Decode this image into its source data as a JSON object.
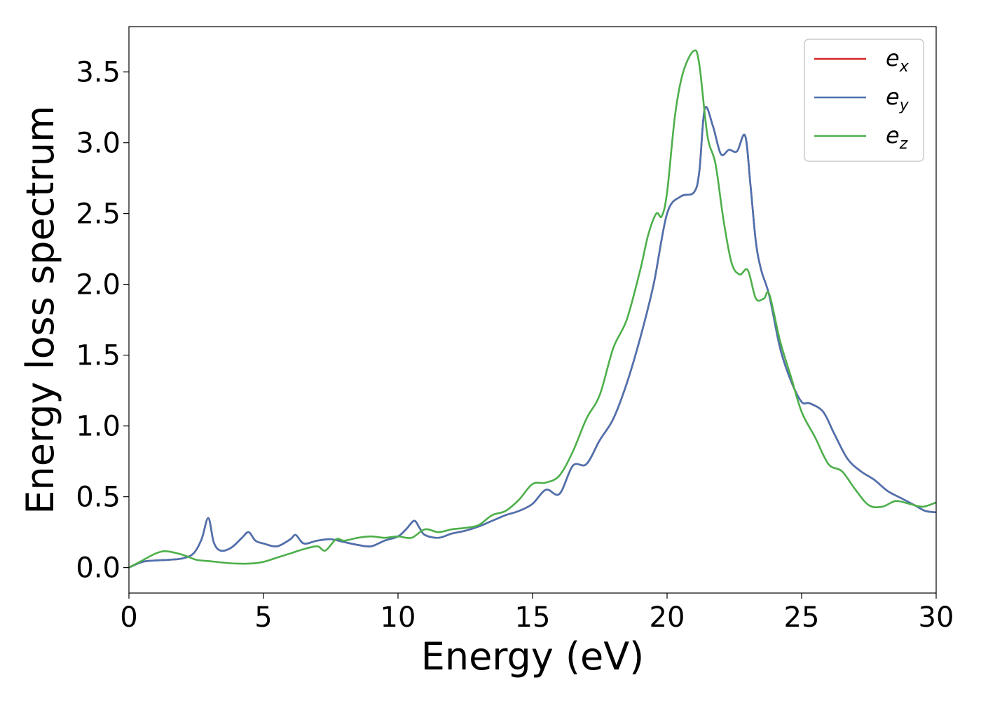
{
  "chart_data": {
    "type": "line",
    "xlabel": "Energy (eV)",
    "ylabel": "Energy loss spectrum",
    "xlim": [
      0,
      30
    ],
    "ylim": [
      -0.18,
      3.82
    ],
    "x_ticks": [
      "0",
      "5",
      "10",
      "15",
      "20",
      "25",
      "30"
    ],
    "y_ticks": [
      "0.0",
      "0.5",
      "1.0",
      "1.5",
      "2.0",
      "2.5",
      "3.0",
      "3.5"
    ],
    "grid": false,
    "legend_position": "top-right",
    "series": [
      {
        "name": "e_x",
        "label_main": "e",
        "label_sub": "x",
        "color": "#d62728",
        "x": [
          0,
          0.5,
          1.0,
          1.5,
          2.0,
          2.4,
          2.7,
          2.95,
          3.15,
          3.4,
          3.8,
          4.2,
          4.45,
          4.7,
          5.0,
          5.5,
          6.0,
          6.2,
          6.5,
          7.0,
          7.5,
          8.0,
          8.5,
          9.0,
          9.5,
          10.0,
          10.3,
          10.6,
          10.8,
          11.0,
          11.5,
          12.0,
          12.5,
          13.0,
          13.5,
          14.0,
          14.5,
          15.0,
          15.5,
          16.0,
          16.5,
          17.0,
          17.5,
          18.0,
          18.5,
          19.0,
          19.5,
          20.0,
          20.5,
          21.0,
          21.2,
          21.4,
          21.7,
          22.0,
          22.3,
          22.6,
          22.9,
          23.1,
          23.3,
          23.5,
          23.8,
          24.2,
          24.6,
          25.0,
          25.3,
          25.8,
          26.2,
          26.7,
          27.2,
          27.7,
          28.2,
          28.7,
          29.2,
          29.6,
          30.0
        ],
        "values": [
          0.0,
          0.04,
          0.05,
          0.055,
          0.065,
          0.1,
          0.2,
          0.35,
          0.18,
          0.12,
          0.14,
          0.21,
          0.25,
          0.19,
          0.17,
          0.15,
          0.2,
          0.23,
          0.17,
          0.19,
          0.2,
          0.18,
          0.16,
          0.15,
          0.19,
          0.22,
          0.27,
          0.33,
          0.28,
          0.23,
          0.21,
          0.24,
          0.26,
          0.29,
          0.33,
          0.37,
          0.4,
          0.45,
          0.55,
          0.52,
          0.72,
          0.73,
          0.9,
          1.05,
          1.3,
          1.62,
          2.0,
          2.5,
          2.62,
          2.65,
          2.8,
          3.24,
          3.12,
          2.92,
          2.95,
          2.94,
          3.05,
          2.7,
          2.3,
          2.1,
          1.92,
          1.55,
          1.32,
          1.17,
          1.16,
          1.1,
          0.95,
          0.77,
          0.68,
          0.62,
          0.54,
          0.49,
          0.44,
          0.4,
          0.39
        ]
      },
      {
        "name": "e_y",
        "label_main": "e",
        "label_sub": "y",
        "color": "#4c72b0",
        "x": [
          0,
          0.5,
          1.0,
          1.5,
          2.0,
          2.4,
          2.7,
          2.95,
          3.15,
          3.4,
          3.8,
          4.2,
          4.45,
          4.7,
          5.0,
          5.5,
          6.0,
          6.2,
          6.5,
          7.0,
          7.5,
          8.0,
          8.5,
          9.0,
          9.5,
          10.0,
          10.3,
          10.6,
          10.8,
          11.0,
          11.5,
          12.0,
          12.5,
          13.0,
          13.5,
          14.0,
          14.5,
          15.0,
          15.5,
          16.0,
          16.5,
          17.0,
          17.5,
          18.0,
          18.5,
          19.0,
          19.5,
          20.0,
          20.5,
          21.0,
          21.2,
          21.4,
          21.7,
          22.0,
          22.3,
          22.6,
          22.9,
          23.1,
          23.3,
          23.5,
          23.8,
          24.2,
          24.6,
          25.0,
          25.3,
          25.8,
          26.2,
          26.7,
          27.2,
          27.7,
          28.2,
          28.7,
          29.2,
          29.6,
          30.0
        ],
        "values": [
          0.0,
          0.04,
          0.05,
          0.055,
          0.065,
          0.1,
          0.2,
          0.35,
          0.18,
          0.12,
          0.14,
          0.21,
          0.25,
          0.19,
          0.17,
          0.15,
          0.2,
          0.23,
          0.17,
          0.19,
          0.2,
          0.18,
          0.16,
          0.15,
          0.19,
          0.22,
          0.27,
          0.33,
          0.28,
          0.23,
          0.21,
          0.24,
          0.26,
          0.29,
          0.33,
          0.37,
          0.4,
          0.45,
          0.55,
          0.52,
          0.72,
          0.73,
          0.9,
          1.05,
          1.3,
          1.62,
          2.0,
          2.5,
          2.62,
          2.65,
          2.8,
          3.24,
          3.12,
          2.92,
          2.95,
          2.94,
          3.05,
          2.7,
          2.3,
          2.1,
          1.92,
          1.55,
          1.32,
          1.17,
          1.16,
          1.1,
          0.95,
          0.77,
          0.68,
          0.62,
          0.54,
          0.49,
          0.44,
          0.4,
          0.39
        ]
      },
      {
        "name": "e_z",
        "label_main": "e",
        "label_sub": "z",
        "color": "#4daf4a",
        "x": [
          0,
          0.5,
          1.0,
          1.4,
          2.0,
          2.5,
          3.0,
          3.5,
          4.0,
          4.5,
          5.0,
          5.5,
          6.0,
          6.5,
          7.0,
          7.3,
          7.7,
          8.0,
          8.5,
          9.0,
          9.5,
          10.0,
          10.5,
          11.0,
          11.5,
          12.0,
          12.5,
          13.0,
          13.5,
          14.0,
          14.5,
          15.0,
          15.5,
          16.0,
          16.5,
          17.0,
          17.5,
          18.0,
          18.5,
          19.0,
          19.3,
          19.6,
          19.8,
          20.0,
          20.3,
          20.6,
          21.0,
          21.2,
          21.5,
          21.8,
          22.1,
          22.4,
          22.7,
          23.0,
          23.3,
          23.6,
          23.8,
          24.2,
          24.6,
          25.0,
          25.5,
          26.0,
          26.5,
          27.0,
          27.5,
          28.0,
          28.5,
          29.0,
          29.5,
          30.0
        ],
        "values": [
          0.0,
          0.05,
          0.1,
          0.115,
          0.09,
          0.055,
          0.045,
          0.035,
          0.028,
          0.028,
          0.04,
          0.07,
          0.1,
          0.13,
          0.15,
          0.12,
          0.2,
          0.19,
          0.21,
          0.22,
          0.21,
          0.22,
          0.21,
          0.27,
          0.25,
          0.27,
          0.28,
          0.3,
          0.37,
          0.4,
          0.48,
          0.59,
          0.6,
          0.65,
          0.82,
          1.05,
          1.22,
          1.55,
          1.75,
          2.1,
          2.35,
          2.5,
          2.48,
          2.65,
          3.2,
          3.5,
          3.65,
          3.55,
          3.05,
          2.85,
          2.45,
          2.15,
          2.07,
          2.1,
          1.9,
          1.9,
          1.93,
          1.6,
          1.35,
          1.1,
          0.92,
          0.73,
          0.68,
          0.55,
          0.44,
          0.43,
          0.47,
          0.45,
          0.43,
          0.46
        ]
      }
    ]
  }
}
